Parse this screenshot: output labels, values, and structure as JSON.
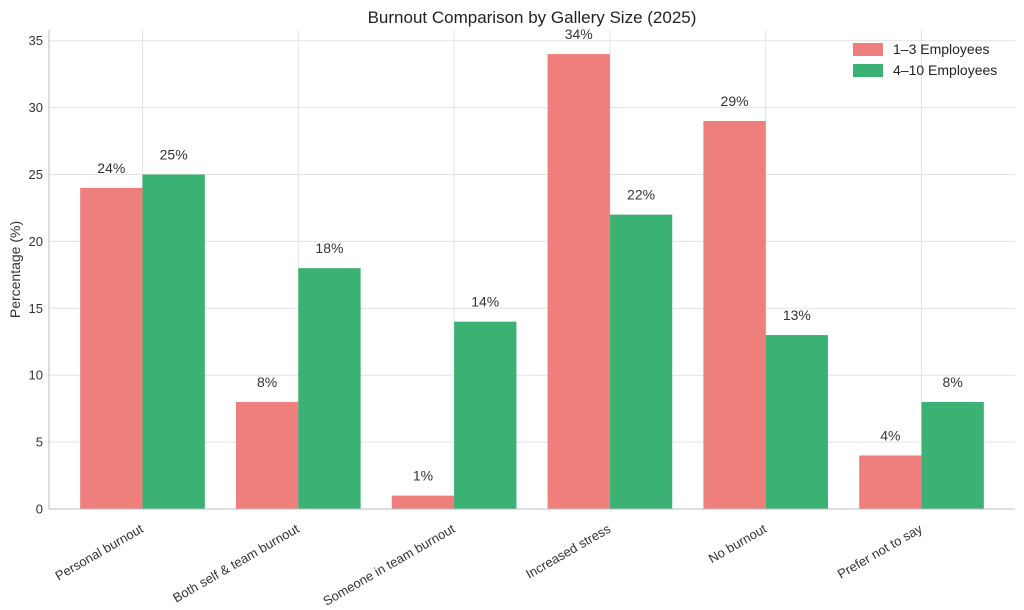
{
  "chart_data": {
    "type": "bar",
    "title": "Burnout Comparison by Gallery Size (2025)",
    "xlabel": "",
    "ylabel": "Percentage (%)",
    "ylim": [
      0,
      35.8
    ],
    "yticks": [
      0,
      5,
      10,
      15,
      20,
      25,
      30,
      35
    ],
    "categories": [
      "Personal burnout",
      "Both self & team burnout",
      "Someone in team burnout",
      "Increased stress",
      "No burnout",
      "Prefer not to say"
    ],
    "series": [
      {
        "name": "1–3 Employees",
        "color": "#ef7f7d",
        "values": [
          24,
          8,
          1,
          34,
          29,
          4
        ],
        "labels": [
          "24%",
          "8%",
          "1%",
          "34%",
          "29%",
          "4%"
        ]
      },
      {
        "name": "4–10 Employees",
        "color": "#3bb273",
        "values": [
          25,
          18,
          14,
          22,
          13,
          8
        ],
        "labels": [
          "25%",
          "18%",
          "14%",
          "22%",
          "13%",
          "8%"
        ]
      }
    ],
    "grid": true,
    "legend_position": "top-right"
  }
}
